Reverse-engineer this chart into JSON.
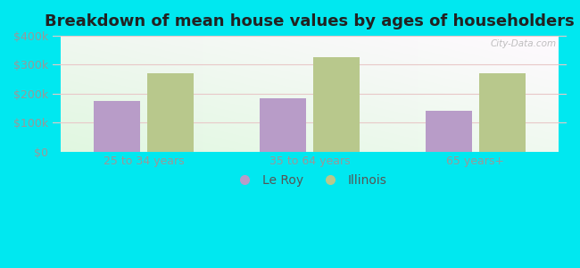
{
  "title": "Breakdown of mean house values by ages of householders",
  "categories": [
    "25 to 34 years",
    "35 to 64 years",
    "65 years+"
  ],
  "leroy_values": [
    175000,
    185000,
    140000
  ],
  "illinois_values": [
    272000,
    325000,
    270000
  ],
  "ylim": [
    0,
    400000
  ],
  "ytick_labels": [
    "$0",
    "$100k",
    "$200k",
    "$300k",
    "$400k"
  ],
  "ytick_values": [
    0,
    100000,
    200000,
    300000,
    400000
  ],
  "leroy_color": "#b89cc8",
  "illinois_color": "#b8c88c",
  "leroy_label": "Le Roy",
  "illinois_label": "Illinois",
  "bg_outer": "#00e8f0",
  "title_fontsize": 13,
  "tick_fontsize": 9,
  "legend_fontsize": 10,
  "bar_width": 0.28,
  "grid_color": "#e8c8c8",
  "watermark": "City-Data.com"
}
